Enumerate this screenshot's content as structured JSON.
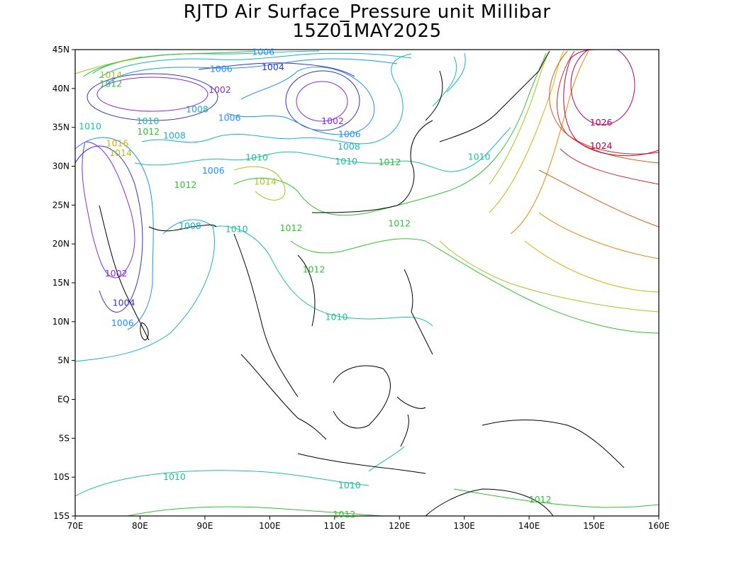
{
  "title": {
    "line1": "RJTD Air Surface_Pressure unit Millibar",
    "line2": "15Z01MAY2025"
  },
  "axes": {
    "lon_ticks": [
      "70E",
      "80E",
      "90E",
      "100E",
      "110E",
      "120E",
      "130E",
      "140E",
      "150E",
      "160E"
    ],
    "lat_ticks": [
      "45N",
      "40N",
      "35N",
      "30N",
      "25N",
      "20N",
      "15N",
      "10N",
      "5N",
      "EQ",
      "5S",
      "10S",
      "15S"
    ],
    "lon_range": [
      70,
      160
    ],
    "lat_range": [
      -15,
      45
    ]
  },
  "level_colors": {
    "1002": "#8a2be2",
    "1004": "#3333cc",
    "1006": "#1e90ff",
    "1008": "#17b3c4",
    "1010": "#19c2a0",
    "1012": "#33c233",
    "1014": "#a8c61a",
    "1016": "#e0b000",
    "1018": "#e88a00",
    "1020": "#e05a10",
    "1022": "#d22a2a",
    "1024": "#c40040",
    "1026": "#b0006a"
  },
  "contour_labels": [
    {
      "text": "1014",
      "lon": 75.5,
      "lat": 41.7,
      "level": "1014"
    },
    {
      "text": "1012",
      "lon": 75.5,
      "lat": 40.6,
      "level": "1012"
    },
    {
      "text": "1006",
      "lon": 92.5,
      "lat": 42.5,
      "level": "1006"
    },
    {
      "text": "1004",
      "lon": 100.5,
      "lat": 42.7,
      "level": "1004"
    },
    {
      "text": "1006",
      "lon": 99.0,
      "lat": 44.7,
      "level": "1006"
    },
    {
      "text": "1002",
      "lon": 92.3,
      "lat": 39.8,
      "level": "1002"
    },
    {
      "text": "1008",
      "lon": 88.8,
      "lat": 37.3,
      "level": "1008"
    },
    {
      "text": "1006",
      "lon": 93.8,
      "lat": 36.2,
      "level": "1006"
    },
    {
      "text": "1010",
      "lon": 81.2,
      "lat": 35.8,
      "level": "1010"
    },
    {
      "text": "1012",
      "lon": 81.3,
      "lat": 34.4,
      "level": "1012"
    },
    {
      "text": "1010",
      "lon": 72.3,
      "lat": 35.1,
      "level": "1010"
    },
    {
      "text": "1016",
      "lon": 76.5,
      "lat": 32.9,
      "level": "1016"
    },
    {
      "text": "1014",
      "lon": 77.0,
      "lat": 31.7,
      "level": "1014"
    },
    {
      "text": "1008",
      "lon": 85.3,
      "lat": 33.9,
      "level": "1008"
    },
    {
      "text": "1002",
      "lon": 109.7,
      "lat": 35.8,
      "level": "1002"
    },
    {
      "text": "1006",
      "lon": 112.3,
      "lat": 34.1,
      "level": "1006"
    },
    {
      "text": "1008",
      "lon": 112.2,
      "lat": 32.5,
      "level": "1008"
    },
    {
      "text": "1010",
      "lon": 98.0,
      "lat": 31.1,
      "level": "1010"
    },
    {
      "text": "1010",
      "lon": 111.8,
      "lat": 30.6,
      "level": "1010"
    },
    {
      "text": "1012",
      "lon": 118.5,
      "lat": 30.5,
      "level": "1012"
    },
    {
      "text": "1006",
      "lon": 91.3,
      "lat": 29.4,
      "level": "1006"
    },
    {
      "text": "1014",
      "lon": 99.3,
      "lat": 28.0,
      "level": "1014"
    },
    {
      "text": "1012",
      "lon": 87.0,
      "lat": 27.6,
      "level": "1012"
    },
    {
      "text": "1010",
      "lon": 132.3,
      "lat": 31.2,
      "level": "1010"
    },
    {
      "text": "1026",
      "lon": 151.1,
      "lat": 35.6,
      "level": "1026"
    },
    {
      "text": "1024",
      "lon": 151.1,
      "lat": 32.6,
      "level": "1024"
    },
    {
      "text": "1008",
      "lon": 87.7,
      "lat": 22.3,
      "level": "1008"
    },
    {
      "text": "1010",
      "lon": 94.9,
      "lat": 21.9,
      "level": "1010"
    },
    {
      "text": "1012",
      "lon": 103.3,
      "lat": 22.0,
      "level": "1012"
    },
    {
      "text": "1012",
      "lon": 120.0,
      "lat": 22.6,
      "level": "1012"
    },
    {
      "text": "1012",
      "lon": 106.8,
      "lat": 16.7,
      "level": "1012"
    },
    {
      "text": "1002",
      "lon": 76.3,
      "lat": 16.2,
      "level": "1002"
    },
    {
      "text": "1004",
      "lon": 77.5,
      "lat": 12.4,
      "level": "1004"
    },
    {
      "text": "1006",
      "lon": 77.3,
      "lat": 9.8,
      "level": "1006"
    },
    {
      "text": "1010",
      "lon": 110.3,
      "lat": 10.6,
      "level": "1010"
    },
    {
      "text": "1010",
      "lon": 85.3,
      "lat": -10.0,
      "level": "1010"
    },
    {
      "text": "1010",
      "lon": 112.3,
      "lat": -11.1,
      "level": "1010"
    },
    {
      "text": "1012",
      "lon": 141.7,
      "lat": -12.9,
      "level": "1012"
    },
    {
      "text": "1012",
      "lon": 111.5,
      "lat": -14.8,
      "level": "1012"
    }
  ]
}
